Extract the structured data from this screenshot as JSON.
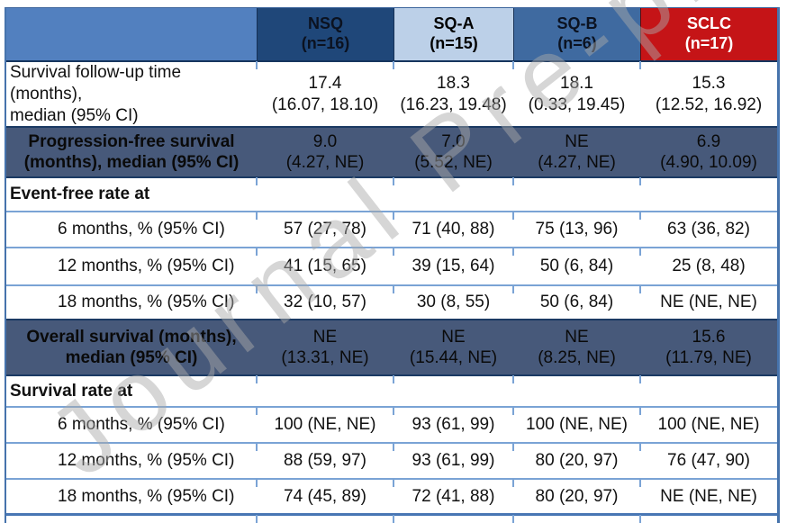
{
  "watermark": "Journal Pre-proof",
  "colors": {
    "header_blank_bg": "#5280bf",
    "nsq_header_bg": "#1f4779",
    "sqa_header_bg": "#bcd0e8",
    "sqb_header_bg": "#3f6aa0",
    "sclc_header_bg": "#c51417",
    "sclc_header_text": "#ffffff",
    "band_row_bg": "#47597a",
    "grid_light": "#7aa3d5",
    "grid_dark": "#1b3a63",
    "outer_border": "#4673ac",
    "watermark_gray": "#aaaaaa"
  },
  "table": {
    "columns": [
      {
        "id": "empty",
        "label": "",
        "count": ""
      },
      {
        "id": "nsq",
        "label": "NSQ",
        "count": "(n=16)"
      },
      {
        "id": "sq-a",
        "label": "SQ-A",
        "count": "(n=15)"
      },
      {
        "id": "sq-b",
        "label": "SQ-B",
        "count": "(n=6)"
      },
      {
        "id": "sclc",
        "label": "SCLC",
        "count": "(n=17)"
      }
    ],
    "rows": [
      {
        "type": "wide",
        "label_lines": [
          "Survival follow-up time (months),",
          "median (95% CI)"
        ],
        "values": [
          [
            "17.4",
            "(16.07, 18.10)"
          ],
          [
            "18.3",
            "(16.23, 19.48)"
          ],
          [
            "18.1",
            "(0.33, 19.45)"
          ],
          [
            "15.3",
            "(12.52, 16.92)"
          ]
        ]
      },
      {
        "type": "band",
        "label_lines": [
          "Progression-free survival",
          "(months), median (95% CI)"
        ],
        "values": [
          [
            "9.0",
            "(4.27, NE)"
          ],
          [
            "7.0",
            "(5.52, NE)"
          ],
          [
            "NE",
            "(4.27, NE)"
          ],
          [
            "6.9",
            "(4.90, 10.09)"
          ]
        ]
      },
      {
        "type": "section",
        "label_lines": [
          "Event-free rate at"
        ],
        "values": [
          [
            ""
          ],
          [
            ""
          ],
          [
            ""
          ],
          [
            ""
          ]
        ]
      },
      {
        "type": "data",
        "label_lines": [
          "6 months, % (95% CI)"
        ],
        "values": [
          [
            "57 (27, 78)"
          ],
          [
            "71 (40, 88)"
          ],
          [
            "75 (13, 96)"
          ],
          [
            "63 (36, 82)"
          ]
        ]
      },
      {
        "type": "data",
        "label_lines": [
          "12 months, % (95% CI)"
        ],
        "values": [
          [
            "41 (15, 65)"
          ],
          [
            "39 (15, 64)"
          ],
          [
            "50 (6, 84)"
          ],
          [
            "25 (8, 48)"
          ]
        ]
      },
      {
        "type": "data",
        "label_lines": [
          "18 months, % (95% CI)"
        ],
        "values": [
          [
            "32 (10, 57)"
          ],
          [
            "30 (8, 55)"
          ],
          [
            "50 (6, 84)"
          ],
          [
            "NE (NE, NE)"
          ]
        ]
      },
      {
        "type": "band",
        "label_lines": [
          "Overall survival (months),",
          "median (95% CI)"
        ],
        "values": [
          [
            "NE",
            "(13.31, NE)"
          ],
          [
            "NE",
            "(15.44, NE)"
          ],
          [
            "NE",
            "(8.25, NE)"
          ],
          [
            "15.6",
            "(11.79, NE)"
          ]
        ]
      },
      {
        "type": "section",
        "label_lines": [
          "Survival rate at"
        ],
        "values": [
          [
            ""
          ],
          [
            ""
          ],
          [
            ""
          ],
          [
            ""
          ]
        ]
      },
      {
        "type": "data",
        "label_lines": [
          "6 months, % (95% CI)"
        ],
        "values": [
          [
            "100 (NE, NE)"
          ],
          [
            "93 (61, 99)"
          ],
          [
            "100 (NE, NE)"
          ],
          [
            "100 (NE, NE)"
          ]
        ]
      },
      {
        "type": "data",
        "label_lines": [
          "12 months, % (95% CI)"
        ],
        "values": [
          [
            "88 (59, 97)"
          ],
          [
            "93 (61, 99)"
          ],
          [
            "80 (20, 97)"
          ],
          [
            "76 (47, 90)"
          ]
        ]
      },
      {
        "type": "data",
        "label_lines": [
          "18 months, % (95% CI)"
        ],
        "values": [
          [
            "74 (45, 89)"
          ],
          [
            "72 (41, 88)"
          ],
          [
            "80 (20, 97)"
          ],
          [
            "NE (NE, NE)"
          ]
        ]
      }
    ]
  }
}
